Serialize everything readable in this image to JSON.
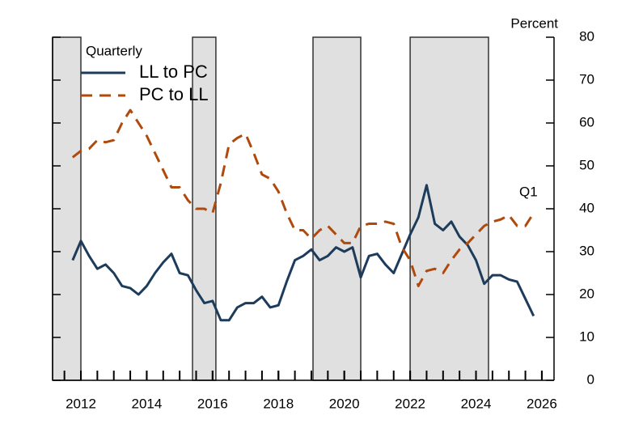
{
  "chart_data": {
    "type": "line",
    "y_axis_label": "Percent",
    "legend_title": "Quarterly",
    "annotation": "Q1",
    "xlim": [
      2011.14,
      2026.37
    ],
    "xticks": [
      2012,
      2014,
      2016,
      2018,
      2020,
      2022,
      2024,
      2026
    ],
    "ylim": [
      0,
      80
    ],
    "yticks": [
      0,
      10,
      20,
      30,
      40,
      50,
      60,
      70,
      80
    ],
    "shaded_periods": [
      [
        2011.14,
        2012.0
      ],
      [
        2015.39,
        2016.1
      ],
      [
        2019.05,
        2020.5
      ],
      [
        2022.0,
        2024.38
      ]
    ],
    "x": [
      2011.75,
      2012.0,
      2012.25,
      2012.5,
      2012.75,
      2013.0,
      2013.25,
      2013.5,
      2013.75,
      2014.0,
      2014.25,
      2014.5,
      2014.75,
      2015.0,
      2015.25,
      2015.5,
      2015.75,
      2016.0,
      2016.25,
      2016.5,
      2016.75,
      2017.0,
      2017.25,
      2017.5,
      2017.75,
      2018.0,
      2018.25,
      2018.5,
      2018.75,
      2019.0,
      2019.25,
      2019.5,
      2019.75,
      2020.0,
      2020.25,
      2020.5,
      2020.75,
      2021.0,
      2021.25,
      2021.5,
      2021.75,
      2022.0,
      2022.25,
      2022.5,
      2022.75,
      2023.0,
      2023.25,
      2023.5,
      2023.75,
      2024.0,
      2024.25,
      2024.5,
      2024.75,
      2025.0,
      2025.25,
      2025.5,
      2025.75
    ],
    "series": [
      {
        "name": "LL to PC",
        "color": "#1d3b5a",
        "dash": false,
        "values": [
          28,
          32.5,
          29,
          26,
          27,
          25,
          22,
          21.5,
          20,
          22,
          25,
          27.5,
          29.5,
          25,
          24.5,
          21,
          18,
          18.5,
          14,
          14,
          17,
          18,
          18,
          19.5,
          17,
          17.5,
          23,
          28,
          29,
          30.5,
          28,
          29,
          31,
          30,
          31,
          24,
          29,
          29.5,
          27,
          25,
          29.5,
          34,
          38,
          45.5,
          36.5,
          35,
          37,
          33.5,
          31.5,
          28,
          22.5,
          24.5,
          24.5,
          23.5,
          23,
          19,
          15
        ]
      },
      {
        "name": "PC to LL",
        "color": "#b04a0c",
        "dash": true,
        "values": [
          52,
          53.5,
          54,
          56,
          55.5,
          56,
          60,
          63,
          60,
          57,
          53,
          49,
          45,
          45,
          42,
          40,
          40,
          39,
          46,
          55,
          56.5,
          57.5,
          53,
          48,
          47,
          44,
          39,
          35,
          35,
          33,
          35,
          36,
          34,
          32,
          32,
          36,
          36.5,
          36.5,
          37,
          36.5,
          31,
          28,
          22,
          25.5,
          26,
          25,
          28,
          30.5,
          32,
          34,
          36,
          37,
          37.5,
          38.5,
          36,
          36,
          39
        ]
      }
    ]
  }
}
